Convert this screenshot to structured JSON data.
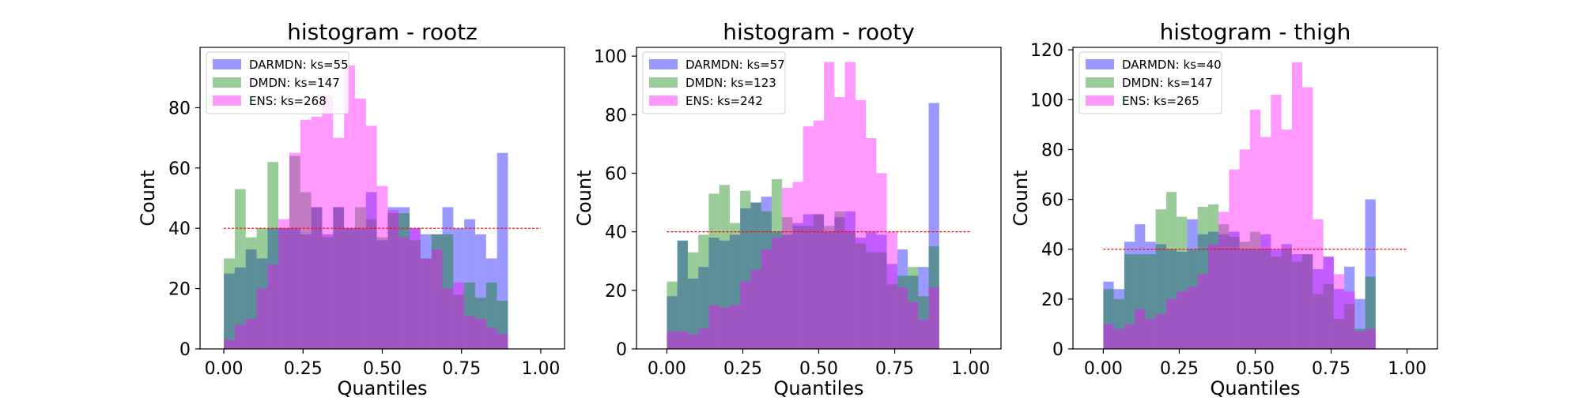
{
  "chart_data": [
    {
      "type": "histogram",
      "title": "histogram - rootz",
      "xlabel": "Quantiles",
      "ylabel": "Count",
      "xlim": [
        -0.075,
        1.075
      ],
      "ylim": [
        0,
        100
      ],
      "xticks": [
        "0.00",
        "0.25",
        "0.50",
        "0.75",
        "1.00"
      ],
      "yticks": [
        "0",
        "20",
        "40",
        "60",
        "80"
      ],
      "bin_width": 0.03448,
      "reference_line": 40,
      "legend": "upper left",
      "series": [
        {
          "name": "DARMDN: ks=55",
          "color": "#0000ff",
          "values": [
            25,
            27,
            33,
            30,
            40,
            40,
            40,
            38,
            47,
            38,
            47,
            40,
            40,
            52,
            36,
            47,
            47,
            40,
            38,
            38,
            47,
            40,
            43,
            38,
            30,
            65
          ]
        },
        {
          "name": "DMDN: ks=147",
          "color": "#008000",
          "values": [
            30,
            53,
            37,
            40,
            62,
            40,
            64,
            52,
            47,
            37,
            47,
            40,
            47,
            43,
            37,
            45,
            45,
            36,
            30,
            38,
            38,
            18,
            22,
            17,
            22,
            16
          ]
        },
        {
          "name": "ENS: ks=268",
          "color": "#ff00ff",
          "values": [
            3,
            8,
            10,
            20,
            28,
            43,
            65,
            76,
            77,
            84,
            70,
            94,
            83,
            74,
            54,
            46,
            37,
            40,
            30,
            33,
            20,
            22,
            11,
            10,
            7,
            5
          ]
        }
      ]
    },
    {
      "type": "histogram",
      "title": "histogram - rooty",
      "xlabel": "Quantiles",
      "ylabel": "Count",
      "xlim": [
        -0.1,
        1.1
      ],
      "ylim": [
        0,
        103
      ],
      "xticks": [
        "0.00",
        "0.25",
        "0.50",
        "0.75",
        "1.00"
      ],
      "yticks": [
        "0",
        "20",
        "40",
        "60",
        "80",
        "100"
      ],
      "bin_width": 0.03448,
      "reference_line": 40,
      "legend": "upper left",
      "series": [
        {
          "name": "DARMDN: ks=57",
          "color": "#0000ff",
          "values": [
            18,
            37,
            24,
            28,
            38,
            37,
            39,
            48,
            50,
            52,
            40,
            39,
            43,
            46,
            46,
            40,
            45,
            47,
            38,
            40,
            39,
            29,
            34,
            25,
            28,
            84
          ]
        },
        {
          "name": "DMDN: ks=123",
          "color": "#008000",
          "values": [
            23,
            37,
            33,
            39,
            53,
            56,
            43,
            54,
            50,
            47,
            58,
            45,
            42,
            42,
            46,
            42,
            47,
            40,
            36,
            33,
            33,
            22,
            25,
            28,
            18,
            35
          ]
        },
        {
          "name": "ENS: ks=242",
          "color": "#ff00ff",
          "values": [
            6,
            6,
            5,
            7,
            15,
            14,
            15,
            23,
            27,
            34,
            38,
            55,
            57,
            76,
            78,
            98,
            86,
            98,
            85,
            72,
            60,
            40,
            21,
            16,
            10,
            21
          ]
        }
      ]
    },
    {
      "type": "histogram",
      "title": "histogram - thigh",
      "xlabel": "Quantiles",
      "ylabel": "Count",
      "xlim": [
        -0.1,
        1.1
      ],
      "ylim": [
        0,
        121
      ],
      "xticks": [
        "0.00",
        "0.25",
        "0.50",
        "0.75",
        "1.00"
      ],
      "yticks": [
        "0",
        "20",
        "40",
        "60",
        "80",
        "100",
        "120"
      ],
      "bin_width": 0.03448,
      "reference_line": 40,
      "legend": "upper left",
      "series": [
        {
          "name": "DARMDN: ks=40",
          "color": "#0000ff",
          "values": [
            27,
            24,
            43,
            50,
            43,
            42,
            40,
            39,
            52,
            46,
            47,
            46,
            47,
            40,
            40,
            46,
            40,
            42,
            38,
            38,
            32,
            37,
            24,
            33,
            20,
            60
          ]
        },
        {
          "name": "DMDN: ks=147",
          "color": "#008000",
          "values": [
            24,
            20,
            38,
            38,
            38,
            56,
            63,
            53,
            40,
            57,
            58,
            50,
            45,
            43,
            47,
            40,
            37,
            40,
            35,
            38,
            22,
            26,
            12,
            18,
            8,
            29
          ]
        },
        {
          "name": "ENS: ks=265",
          "color": "#ff00ff",
          "values": [
            10,
            8,
            10,
            16,
            12,
            14,
            20,
            23,
            25,
            30,
            42,
            55,
            72,
            80,
            96,
            85,
            102,
            88,
            115,
            105,
            52,
            37,
            30,
            23,
            7,
            8
          ]
        }
      ]
    }
  ]
}
